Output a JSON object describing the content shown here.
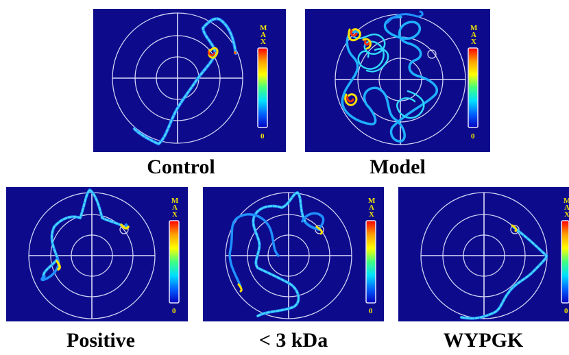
{
  "panels": [
    {
      "id": "control",
      "label": "Control"
    },
    {
      "id": "model",
      "label": "Model"
    },
    {
      "id": "positive",
      "label": "Positive"
    },
    {
      "id": "lt3kda",
      "label": "< 3 kDa"
    },
    {
      "id": "wypgk",
      "label": "WYPGK"
    }
  ],
  "colorbar": {
    "max_letters": [
      "M",
      "A",
      "X"
    ],
    "min_label": "0",
    "colors": [
      "#ff0000",
      "#ffa000",
      "#ffff00",
      "#40ff80",
      "#00e0ff",
      "#0060ff",
      "#0000c0"
    ]
  },
  "colors": {
    "background": "#0d0b8c",
    "grid_lines": "#e8e8ff",
    "track_main": "#2ec8ff",
    "track_hot": "#ffe000",
    "track_peak": "#ff3000"
  }
}
